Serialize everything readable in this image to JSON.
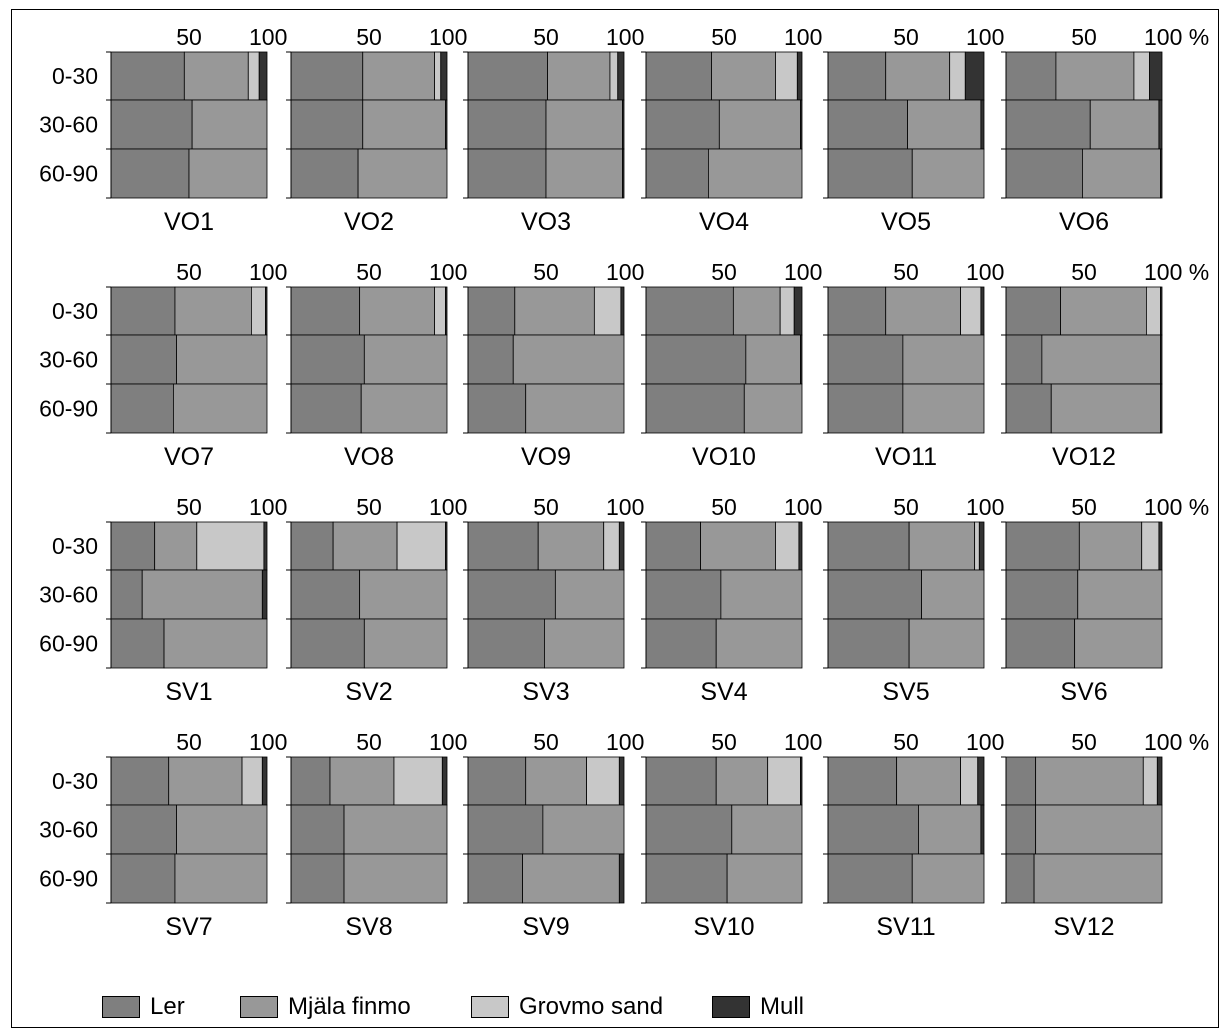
{
  "colors": {
    "Ler": "#7f7f7f",
    "Mjala": "#989898",
    "Grovmo": "#c8c8c8",
    "Mull": "#333333"
  },
  "legend": [
    {
      "label": "Ler",
      "color": "#7f7f7f"
    },
    {
      "label": "Mjäla finmo",
      "color": "#989898"
    },
    {
      "label": "Grovmo sand",
      "color": "#c8c8c8"
    },
    {
      "label": "Mull",
      "color": "#333333"
    }
  ],
  "chart_data": {
    "type": "bar",
    "orientation": "horizontal-stacked",
    "depth_labels": [
      "0-30",
      "30-60",
      "60-90"
    ],
    "x_ticks": [
      "50",
      "100"
    ],
    "last_column_x_ticks": [
      "50",
      "100 %"
    ],
    "xlim": [
      0,
      100
    ],
    "series_names": [
      "Ler",
      "Mjäla finmo",
      "Grovmo sand",
      "Mull"
    ],
    "panels": [
      {
        "name": "VO1",
        "layers": [
          [
            47,
            41,
            7,
            5
          ],
          [
            52,
            48,
            0,
            0
          ],
          [
            50,
            50,
            0,
            0
          ]
        ]
      },
      {
        "name": "VO2",
        "layers": [
          [
            46,
            46,
            4,
            4
          ],
          [
            46,
            53,
            0,
            1
          ],
          [
            43,
            57,
            0,
            0
          ]
        ]
      },
      {
        "name": "VO3",
        "layers": [
          [
            51,
            40,
            5,
            4
          ],
          [
            50,
            49,
            0,
            1
          ],
          [
            50,
            49,
            0,
            1
          ]
        ]
      },
      {
        "name": "VO4",
        "layers": [
          [
            42,
            41,
            14,
            3
          ],
          [
            47,
            52,
            0,
            1
          ],
          [
            40,
            60,
            0,
            0
          ]
        ]
      },
      {
        "name": "VO5",
        "layers": [
          [
            37,
            41,
            10,
            12
          ],
          [
            51,
            47,
            0,
            2
          ],
          [
            54,
            46,
            0,
            0
          ]
        ]
      },
      {
        "name": "VO6",
        "layers": [
          [
            32,
            50,
            10,
            8
          ],
          [
            54,
            44,
            0,
            2
          ],
          [
            49,
            50,
            0,
            1
          ]
        ]
      },
      {
        "name": "VO7",
        "layers": [
          [
            41,
            49,
            9,
            1
          ],
          [
            42,
            58,
            0,
            0
          ],
          [
            40,
            60,
            0,
            0
          ]
        ]
      },
      {
        "name": "VO8",
        "layers": [
          [
            44,
            48,
            7,
            1
          ],
          [
            47,
            53,
            0,
            0
          ],
          [
            45,
            55,
            0,
            0
          ]
        ]
      },
      {
        "name": "VO9",
        "layers": [
          [
            30,
            51,
            17,
            2
          ],
          [
            29,
            71,
            0,
            0
          ],
          [
            37,
            63,
            0,
            0
          ]
        ]
      },
      {
        "name": "VO10",
        "layers": [
          [
            56,
            30,
            9,
            5
          ],
          [
            64,
            35,
            0,
            1
          ],
          [
            63,
            37,
            0,
            0
          ]
        ]
      },
      {
        "name": "VO11",
        "layers": [
          [
            37,
            48,
            13,
            2
          ],
          [
            48,
            52,
            0,
            0
          ],
          [
            48,
            52,
            0,
            0
          ]
        ]
      },
      {
        "name": "VO12",
        "layers": [
          [
            35,
            55,
            9,
            1
          ],
          [
            23,
            76,
            0,
            1
          ],
          [
            29,
            70,
            0,
            1
          ]
        ]
      },
      {
        "name": "SV1",
        "layers": [
          [
            28,
            27,
            43,
            2
          ],
          [
            20,
            77,
            0,
            3
          ],
          [
            34,
            66,
            0,
            0
          ]
        ]
      },
      {
        "name": "SV2",
        "layers": [
          [
            27,
            41,
            31,
            1
          ],
          [
            44,
            56,
            0,
            0
          ],
          [
            47,
            53,
            0,
            0
          ]
        ]
      },
      {
        "name": "SV3",
        "layers": [
          [
            45,
            42,
            10,
            3
          ],
          [
            56,
            44,
            0,
            0
          ],
          [
            49,
            51,
            0,
            0
          ]
        ]
      },
      {
        "name": "SV4",
        "layers": [
          [
            35,
            48,
            15,
            2
          ],
          [
            48,
            52,
            0,
            0
          ],
          [
            45,
            55,
            0,
            0
          ]
        ]
      },
      {
        "name": "SV5",
        "layers": [
          [
            52,
            42,
            3,
            3
          ],
          [
            60,
            40,
            0,
            0
          ],
          [
            52,
            48,
            0,
            0
          ]
        ]
      },
      {
        "name": "SV6",
        "layers": [
          [
            47,
            40,
            11,
            2
          ],
          [
            46,
            54,
            0,
            0
          ],
          [
            44,
            56,
            0,
            0
          ]
        ]
      },
      {
        "name": "SV7",
        "layers": [
          [
            37,
            47,
            13,
            3
          ],
          [
            42,
            58,
            0,
            0
          ],
          [
            41,
            59,
            0,
            0
          ]
        ]
      },
      {
        "name": "SV8",
        "layers": [
          [
            25,
            41,
            31,
            3
          ],
          [
            34,
            66,
            0,
            0
          ],
          [
            34,
            66,
            0,
            0
          ]
        ]
      },
      {
        "name": "SV9",
        "layers": [
          [
            37,
            39,
            21,
            3
          ],
          [
            48,
            52,
            0,
            0
          ],
          [
            35,
            62,
            0,
            3
          ]
        ]
      },
      {
        "name": "SV10",
        "layers": [
          [
            45,
            33,
            21,
            1
          ],
          [
            55,
            45,
            0,
            0
          ],
          [
            52,
            48,
            0,
            0
          ]
        ]
      },
      {
        "name": "SV11",
        "layers": [
          [
            44,
            41,
            11,
            4
          ],
          [
            58,
            40,
            0,
            2
          ],
          [
            54,
            46,
            0,
            0
          ]
        ]
      },
      {
        "name": "SV12",
        "layers": [
          [
            19,
            69,
            9,
            3
          ],
          [
            19,
            81,
            0,
            0
          ],
          [
            18,
            82,
            0,
            0
          ]
        ]
      }
    ]
  }
}
